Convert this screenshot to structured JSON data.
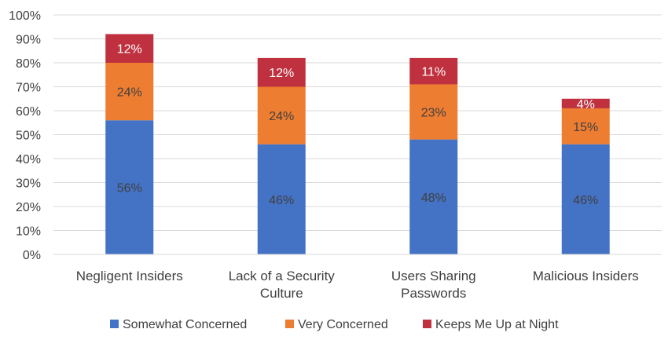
{
  "chart_data": {
    "type": "bar",
    "stacked": true,
    "categories": [
      [
        "Negligent Insiders"
      ],
      [
        "Lack of a Security",
        "Culture"
      ],
      [
        "Users Sharing",
        "Passwords"
      ],
      [
        "Malicious Insiders"
      ]
    ],
    "series": [
      {
        "name": "Somewhat Concerned",
        "color": "#4472C4",
        "label_color": "#404040",
        "values": [
          56,
          46,
          48,
          46
        ]
      },
      {
        "name": "Very Concerned",
        "color": "#ED7D31",
        "label_color": "#404040",
        "values": [
          24,
          24,
          23,
          15
        ]
      },
      {
        "name": "Keeps Me Up at Night",
        "color": "#C0313F",
        "label_color": "#ffffff",
        "values": [
          12,
          12,
          11,
          4
        ]
      }
    ],
    "data_labels": [
      [
        "56%",
        "46%",
        "48%",
        "46%"
      ],
      [
        "24%",
        "24%",
        "23%",
        "15%"
      ],
      [
        "12%",
        "12%",
        "11%",
        "4%"
      ]
    ],
    "ylim": [
      0,
      100
    ],
    "yticks": [
      0,
      10,
      20,
      30,
      40,
      50,
      60,
      70,
      80,
      90,
      100
    ],
    "ytick_labels": [
      "0%",
      "10%",
      "20%",
      "30%",
      "40%",
      "50%",
      "60%",
      "70%",
      "80%",
      "90%",
      "100%"
    ],
    "grid": true,
    "legend": "bottom"
  }
}
